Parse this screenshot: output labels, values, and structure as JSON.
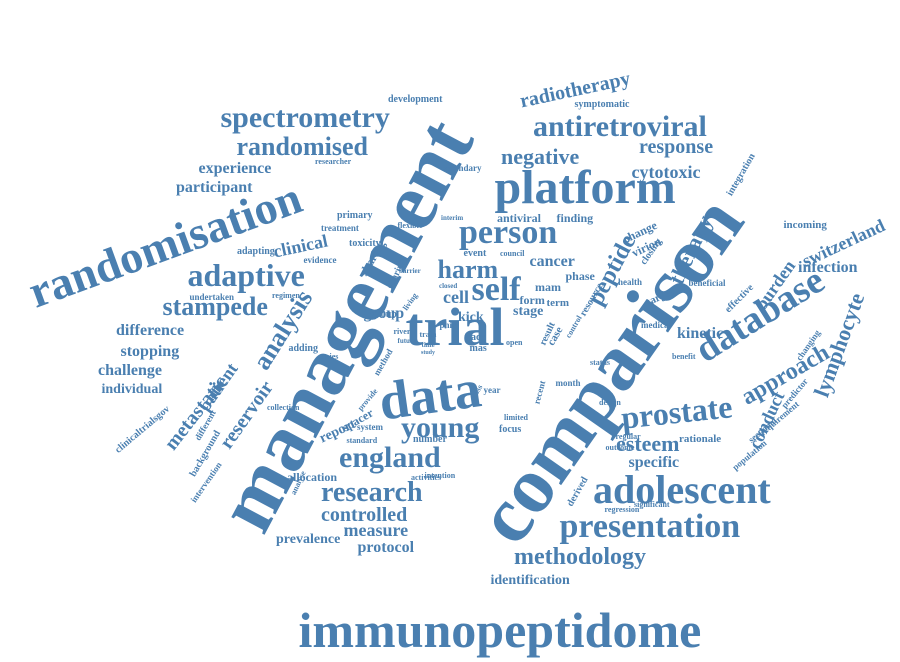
{
  "color": "#4a7fb0",
  "words": [
    "immunopeptidome",
    "management",
    "comparison",
    "randomisation",
    "platform",
    "trial",
    "data",
    "adolescent",
    "presentation",
    "database",
    "antiretroviral",
    "spectrometry",
    "person",
    "adaptive",
    "randomised",
    "prostate",
    "young",
    "england",
    "research",
    "methodology",
    "stampede",
    "negative",
    "radiotherapy",
    "response",
    "cytotoxic",
    "self",
    "harm",
    "analysis",
    "metastatic",
    "patient",
    "reservoir",
    "approach",
    "lymphocyte",
    "switzerland",
    "peptide",
    "therapy",
    "burden",
    "infection",
    "kinetic",
    "esteem",
    "specific",
    "conduct",
    "controlled",
    "measure",
    "protocol",
    "prevalence",
    "identification",
    "experience",
    "participant",
    "clinical",
    "difference",
    "stopping",
    "challenge",
    "individual",
    "cell",
    "cancer",
    "stage",
    "group",
    "report",
    "allocation",
    "development",
    "symptomatic",
    "integration",
    "incoming",
    "clinicaltrialsgov",
    "background",
    "different",
    "intervention",
    "rationale",
    "population",
    "sectional",
    "changing",
    "requirement",
    "predictor",
    "form",
    "number",
    "focus",
    "design",
    "regression",
    "significant",
    "outcome",
    "derived",
    "regular",
    "benefit",
    "status",
    "case",
    "result",
    "resource",
    "term",
    "phase",
    "mam",
    "kick",
    "acc",
    "mas",
    "event",
    "council",
    "finding",
    "antiviral",
    "change",
    "virion",
    "closing",
    "target",
    "beneficial",
    "effective",
    "medical",
    "health",
    "group",
    "undertaken",
    "regimen",
    "adapting",
    "toxicity",
    "primary",
    "treatment",
    "researcher",
    "secondary",
    "evidence",
    "flexible",
    "interim",
    "adding",
    "copies",
    "sharing",
    "living",
    "barrier",
    "closed",
    "river",
    "future",
    "train",
    "time",
    "study",
    "month",
    "year",
    "recent",
    "cross",
    "limited",
    "intention",
    "activities",
    "system",
    "standard",
    "spacer",
    "collection",
    "analyse",
    "provide",
    "method",
    "control",
    "open",
    "phiv",
    "sharing"
  ]
}
